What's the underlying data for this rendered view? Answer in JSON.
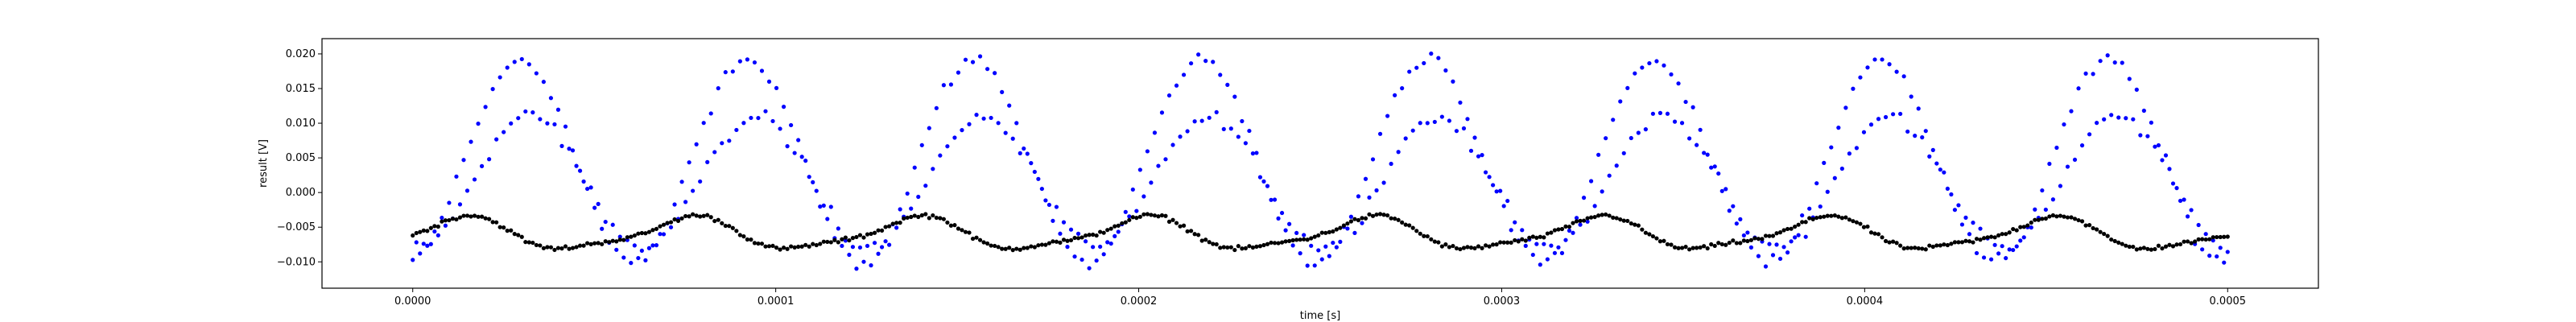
{
  "chart_data": {
    "type": "scatter",
    "title": "",
    "xlabel": "time [s]",
    "ylabel": "result [V]",
    "xlim": [
      -2.5e-05,
      0.000525
    ],
    "ylim": [
      -0.0138,
      0.0222
    ],
    "xticks": [
      0.0,
      0.0001,
      0.0002,
      0.0003,
      0.0004,
      0.0005
    ],
    "xtick_labels": [
      "0.0000",
      "0.0001",
      "0.0002",
      "0.0003",
      "0.0004",
      "0.0005"
    ],
    "yticks": [
      -0.01,
      -0.005,
      0.0,
      0.005,
      0.01,
      0.015,
      0.02
    ],
    "ytick_labels": [
      "−0.010",
      "−0.005",
      "0.000",
      "0.005",
      "0.010",
      "0.015",
      "0.020"
    ],
    "grid": false,
    "legend": "none",
    "series": [
      {
        "color": "#0000ff",
        "x_start": 0.0,
        "x_end": 0.0005,
        "count": 500,
        "period": 6.25e-05,
        "envelope_peak": 0.019,
        "envelope_trough": -0.0105,
        "note_shape": "two interleaved sinusoid-like branches; upper branch peaks near 0.019, lower branch near 0.011"
      },
      {
        "color": "#000000",
        "x_start": 0.0,
        "x_end": 0.0005,
        "count": 500,
        "period": 6.25e-05,
        "min": -0.0085,
        "max": -0.0035
      }
    ]
  }
}
